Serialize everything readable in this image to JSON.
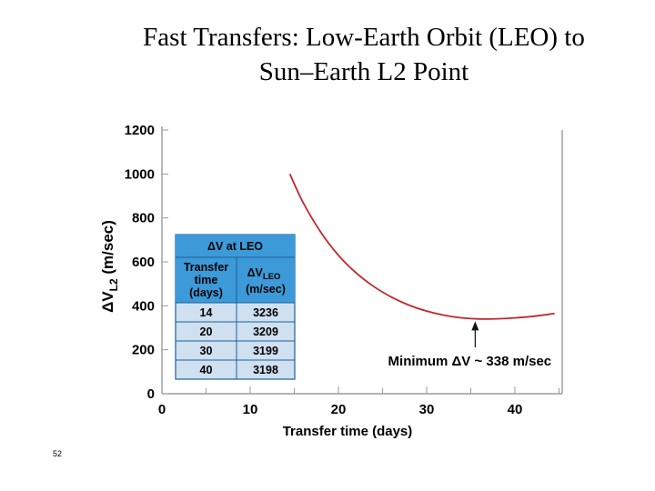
{
  "slide": {
    "title_line1": "Fast Transfers: Low-Earth Orbit (LEO) to",
    "title_line2": "Sun–Earth L2 Point",
    "page_number": "52"
  },
  "chart_data": {
    "type": "line",
    "xlabel": "Transfer time (days)",
    "ylabel_main": "ΔV",
    "ylabel_sub": "L2",
    "ylabel_unit": " (m/sec)",
    "xlim": [
      0,
      45
    ],
    "ylim": [
      0,
      1200
    ],
    "x_ticks": [
      0,
      10,
      20,
      30,
      40
    ],
    "y_ticks": [
      0,
      200,
      400,
      600,
      800,
      1000,
      1200
    ],
    "grid": false,
    "series": [
      {
        "color": "#c0282e",
        "x": [
          14.5,
          16,
          18,
          20,
          22,
          24,
          26,
          28,
          30,
          32,
          34,
          36,
          38,
          40,
          42,
          44.5
        ],
        "y": [
          1000,
          870,
          735,
          630,
          550,
          488,
          440,
          403,
          376,
          357,
          345,
          340,
          341,
          345,
          352,
          365
        ]
      }
    ],
    "annotation": {
      "text": "Minimum ΔV ~ 338 m/sec",
      "x": 35.5,
      "y": 338
    },
    "inset_table": {
      "title": "ΔV at LEO",
      "col1_header": [
        "Transfer",
        "time",
        "(days)"
      ],
      "col2_header_main": "ΔV",
      "col2_header_sub": "LEO",
      "col2_header_unit": "(m/sec)",
      "rows": [
        [
          "14",
          "3236"
        ],
        [
          "20",
          "3209"
        ],
        [
          "30",
          "3199"
        ],
        [
          "40",
          "3198"
        ]
      ]
    },
    "colors": {
      "header_fill": "#3c9ad8",
      "cell_fill": "#cfe0f0",
      "curve": "#c0282e"
    }
  }
}
